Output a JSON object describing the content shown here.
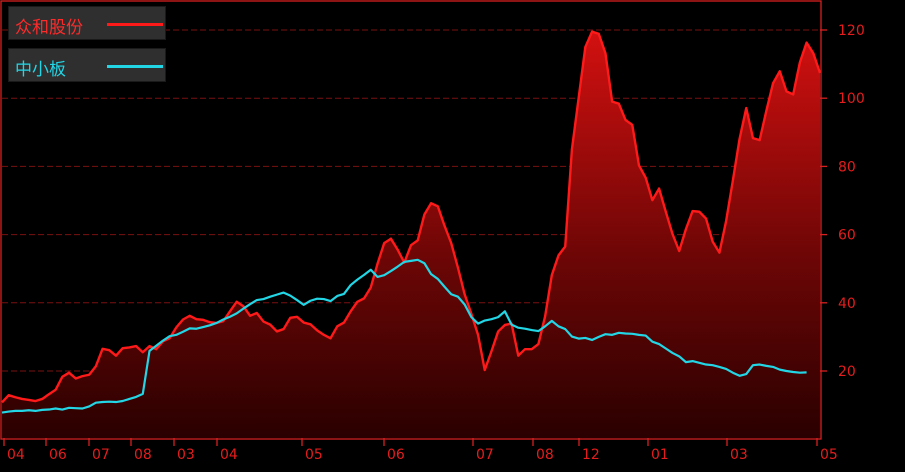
{
  "chart_data": {
    "type": "area",
    "legend_position": "top-left",
    "grid": true,
    "ylim": [
      0,
      130
    ],
    "y_ticks": [
      20,
      40,
      60,
      80,
      100,
      120
    ],
    "x_ticks": [
      "04",
      "06",
      "07",
      "08",
      "03",
      "04",
      "05",
      "06",
      "07",
      "08",
      "12",
      "01",
      "03",
      "05"
    ],
    "series": [
      {
        "name": "众和股份",
        "color": "#ff1a1a",
        "values": [
          10.8,
          12.9,
          12.3,
          11.8,
          11.5,
          11.2,
          11.8,
          13.2,
          14.5,
          18.3,
          19.5,
          17.8,
          18.5,
          18.9,
          21.4,
          26.5,
          26.1,
          24.5,
          26.7,
          26.9,
          27.3,
          25.5,
          27.3,
          26.4,
          28.7,
          29.6,
          32.8,
          35.1,
          36.2,
          35.2,
          35.0,
          34.3,
          34.1,
          34.6,
          37.5,
          40.3,
          39.0,
          36.2,
          37.0,
          34.5,
          33.6,
          31.6,
          32.3,
          35.6,
          35.9,
          34.2,
          33.7,
          31.9,
          30.6,
          29.6,
          33.1,
          34.2,
          37.5,
          40.3,
          41.3,
          44.5,
          51.4,
          57.5,
          58.8,
          55.6,
          51.8,
          56.9,
          58.3,
          65.9,
          69.2,
          68.3,
          62.6,
          57.5,
          50.3,
          42.5,
          36.8,
          30.6,
          20.3,
          25.8,
          31.6,
          33.5,
          33.9,
          24.5,
          26.4,
          26.4,
          27.9,
          36.0,
          48.1,
          53.9,
          56.5,
          85.0,
          100.0,
          115.0,
          119.5,
          118.9,
          113.2,
          99.0,
          98.4,
          93.6,
          92.2,
          80.3,
          76.7,
          70.1,
          73.5,
          66.7,
          60.2,
          55.2,
          61.6,
          66.9,
          66.7,
          64.7,
          57.9,
          54.7,
          64.0,
          75.8,
          88.0,
          97.1,
          88.3,
          87.7,
          96.3,
          104.4,
          107.9,
          102.0,
          101.1,
          110.5,
          116.3,
          113.2,
          107.4
        ]
      },
      {
        "name": "中小板",
        "color": "#22d6e6",
        "values": [
          7.8,
          8.1,
          8.3,
          8.3,
          8.5,
          8.3,
          8.6,
          8.7,
          9.0,
          8.7,
          9.2,
          9.1,
          9.0,
          9.6,
          10.7,
          10.9,
          11.0,
          10.9,
          11.2,
          11.8,
          12.4,
          13.3,
          25.9,
          27.4,
          28.9,
          30.2,
          30.6,
          31.5,
          32.5,
          32.4,
          32.9,
          33.4,
          34.1,
          35.1,
          35.9,
          36.9,
          38.3,
          39.6,
          40.8,
          41.1,
          41.8,
          42.4,
          43.0,
          42.1,
          40.8,
          39.4,
          40.6,
          41.2,
          41.1,
          40.5,
          42.0,
          42.6,
          45.2,
          46.8,
          48.2,
          49.7,
          47.6,
          48.1,
          49.3,
          50.6,
          52.0,
          52.3,
          52.6,
          51.6,
          48.4,
          47.0,
          44.7,
          42.5,
          41.8,
          39.5,
          35.8,
          33.9,
          34.8,
          35.2,
          35.8,
          37.5,
          33.6,
          32.7,
          32.4,
          32.0,
          31.7,
          33.1,
          34.7,
          33.1,
          32.3,
          30.1,
          29.5,
          29.7,
          29.1,
          30.0,
          30.8,
          30.6,
          31.2,
          31.0,
          30.9,
          30.6,
          30.4,
          28.6,
          27.9,
          26.6,
          25.3,
          24.3,
          22.6,
          22.9,
          22.4,
          21.9,
          21.7,
          21.2,
          20.6,
          19.5,
          18.6,
          19.1,
          21.7,
          21.9,
          21.5,
          21.2,
          20.4,
          20.0,
          19.7,
          19.5,
          19.6
        ]
      }
    ]
  }
}
